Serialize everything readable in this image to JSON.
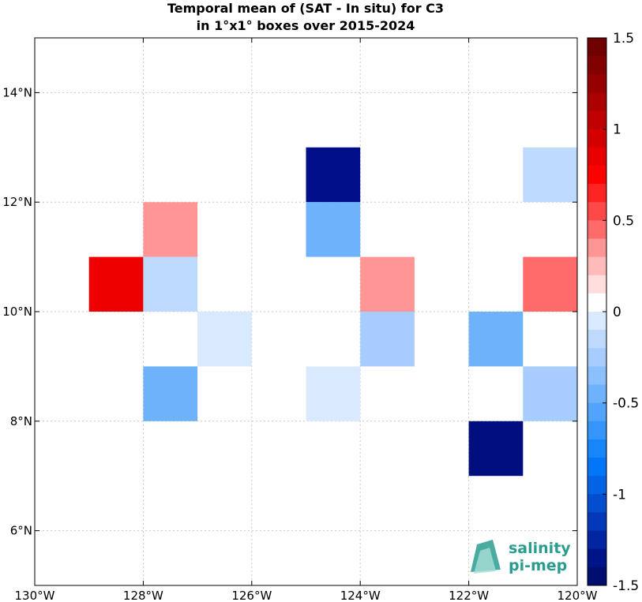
{
  "title": {
    "line1": "Temporal mean of (SAT - In situ) for C3",
    "line2": "in 1°x1° boxes over 2015-2024"
  },
  "map": {
    "lon_range": [
      -130,
      -120
    ],
    "lat_range": [
      5,
      15
    ],
    "grid": true,
    "x_ticks": [
      {
        "value": -130,
        "label": "130°W"
      },
      {
        "value": -128,
        "label": "128°W"
      },
      {
        "value": -126,
        "label": "126°W"
      },
      {
        "value": -124,
        "label": "124°W"
      },
      {
        "value": -122,
        "label": "122°W"
      },
      {
        "value": -120,
        "label": "120°W"
      }
    ],
    "y_ticks": [
      {
        "value": 6,
        "label": "6°N"
      },
      {
        "value": 8,
        "label": "8°N"
      },
      {
        "value": 10,
        "label": "10°N"
      },
      {
        "value": 12,
        "label": "12°N"
      },
      {
        "value": 14,
        "label": "14°N"
      }
    ],
    "cells": [
      {
        "lon": -125,
        "lat": 12,
        "color": "#000e8a"
      },
      {
        "lon": -121,
        "lat": 12,
        "color": "#bdd9fd"
      },
      {
        "lon": -128,
        "lat": 11,
        "color": "#ff9595"
      },
      {
        "lon": -125,
        "lat": 11,
        "color": "#6fb2fc"
      },
      {
        "lon": -129,
        "lat": 10,
        "color": "#ee0000"
      },
      {
        "lon": -128,
        "lat": 10,
        "color": "#bdd9fd"
      },
      {
        "lon": -124,
        "lat": 10,
        "color": "#ff9595"
      },
      {
        "lon": -121,
        "lat": 10,
        "color": "#ff6a6a"
      },
      {
        "lon": -127,
        "lat": 9,
        "color": "#d9e9fe"
      },
      {
        "lon": -124,
        "lat": 9,
        "color": "#a6cdfd"
      },
      {
        "lon": -122,
        "lat": 9,
        "color": "#6fb2fc"
      },
      {
        "lon": -128,
        "lat": 8,
        "color": "#6fb2fc"
      },
      {
        "lon": -125,
        "lat": 8,
        "color": "#d9e9fe"
      },
      {
        "lon": -121,
        "lat": 8,
        "color": "#a6cdfd"
      },
      {
        "lon": -122,
        "lat": 7,
        "color": "#000e7e"
      }
    ]
  },
  "colorbar": {
    "range": [
      -1.5,
      1.5
    ],
    "ticks": [
      {
        "value": 1.5,
        "label": "1.5"
      },
      {
        "value": 1,
        "label": "1"
      },
      {
        "value": 0.5,
        "label": "0.5"
      },
      {
        "value": 0,
        "label": "0"
      },
      {
        "value": -0.5,
        "label": "-0.5"
      },
      {
        "value": -1,
        "label": "-1"
      },
      {
        "value": -1.5,
        "label": "-1.5"
      }
    ],
    "colors_top_to_bottom": [
      "#6e0000",
      "#820000",
      "#960000",
      "#aa0000",
      "#c00000",
      "#d40000",
      "#e80000",
      "#fd0000",
      "#ff2424",
      "#ff4848",
      "#ff6a6a",
      "#ff9595",
      "#ffbaba",
      "#ffdddd",
      "#ffffff",
      "#d9e9fe",
      "#bdd9fd",
      "#a6cdfd",
      "#8cc0fc",
      "#6fb2fc",
      "#52a3fc",
      "#3595fb",
      "#1786fa",
      "#0276f8",
      "#0363e6",
      "#034ecf",
      "#0339b8",
      "#0226a2",
      "#001489",
      "#000e70"
    ]
  },
  "logo": {
    "line1": "salinity",
    "line2": "pi-mep"
  }
}
